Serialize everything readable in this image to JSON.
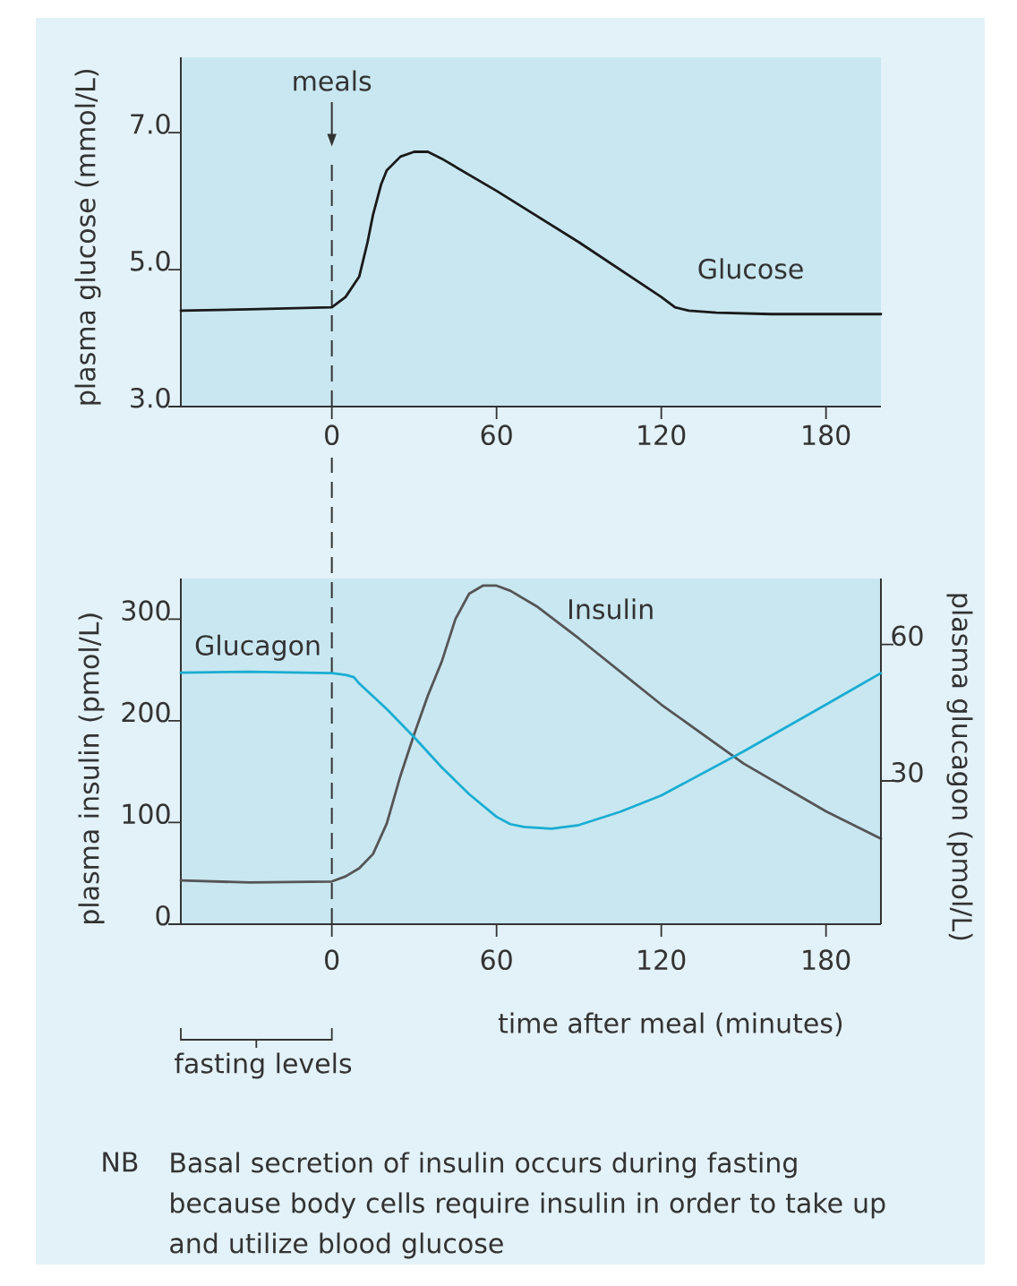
{
  "chart_data": [
    {
      "type": "line",
      "ylabel": "plasma glucose (mmol/L)",
      "xlim": [
        -55,
        200
      ],
      "ylim": [
        3,
        8.1
      ],
      "xticks": [
        0,
        60,
        120,
        180
      ],
      "yticks": [
        {
          "value": 3,
          "label": "3.0"
        },
        {
          "value": 5,
          "label": "5.0"
        },
        {
          "value": 7,
          "label": "7.0"
        }
      ],
      "series": [
        {
          "name": "Glucose",
          "color": "#1a1a1a",
          "x": [
            -55,
            -30,
            0,
            5,
            10,
            13,
            15,
            18,
            20,
            25,
            30,
            35,
            40,
            60,
            90,
            120,
            125,
            130,
            140,
            160,
            200
          ],
          "values": [
            4.4,
            4.42,
            4.45,
            4.6,
            4.9,
            5.4,
            5.8,
            6.25,
            6.45,
            6.65,
            6.72,
            6.72,
            6.62,
            6.15,
            5.4,
            4.6,
            4.45,
            4.4,
            4.37,
            4.35,
            4.35
          ]
        }
      ],
      "ref_lines": [
        {
          "axis": "x",
          "value": 0,
          "label": "meals",
          "line_style": "dashed"
        }
      ]
    },
    {
      "type": "line",
      "xlabel": "time after meal (minutes)",
      "ylabel": "plasma insulin (pmol/L)",
      "y2label": "plasma glucagon (pmol/L)",
      "xlim": [
        -55,
        200
      ],
      "ylim": [
        0,
        340
      ],
      "y2lim": [
        -1.5,
        74.5
      ],
      "xticks": [
        0,
        60,
        120,
        180
      ],
      "yticks": [
        0,
        100,
        200,
        300
      ],
      "y2ticks": [
        30,
        60
      ],
      "series": [
        {
          "name": "Insulin",
          "color": "#555555",
          "x": [
            -55,
            -30,
            0,
            5,
            10,
            15,
            20,
            25,
            30,
            35,
            40,
            45,
            50,
            55,
            60,
            65,
            75,
            90,
            120,
            150,
            180,
            200
          ],
          "values": [
            43,
            41,
            42,
            47,
            55,
            69,
            99,
            146,
            187,
            225,
            258,
            300,
            325,
            333,
            333,
            328,
            312,
            281,
            216,
            158,
            111,
            84
          ]
        },
        {
          "name": "Glucagon",
          "color": "#1aadd2",
          "axis": "y2",
          "x": [
            -55,
            -30,
            0,
            5,
            8,
            10,
            20,
            30,
            40,
            50,
            60,
            65,
            70,
            80,
            90,
            105,
            120,
            150,
            180,
            200
          ],
          "values": [
            53.8,
            54,
            53.7,
            53.3,
            52.8,
            51.4,
            45.8,
            39.6,
            33,
            27.1,
            22.1,
            20.5,
            19.9,
            19.5,
            20.3,
            23.2,
            26.8,
            36.5,
            46.8,
            53.7
          ]
        }
      ],
      "ref_lines": [
        {
          "axis": "x",
          "value": 0,
          "line_style": "dashed"
        }
      ],
      "annotations": [
        "fasting levels",
        "NB",
        "Basal secretion of insulin occurs during fasting because body cells require insulin in order to take up and utilize blood glucose"
      ]
    }
  ]
}
